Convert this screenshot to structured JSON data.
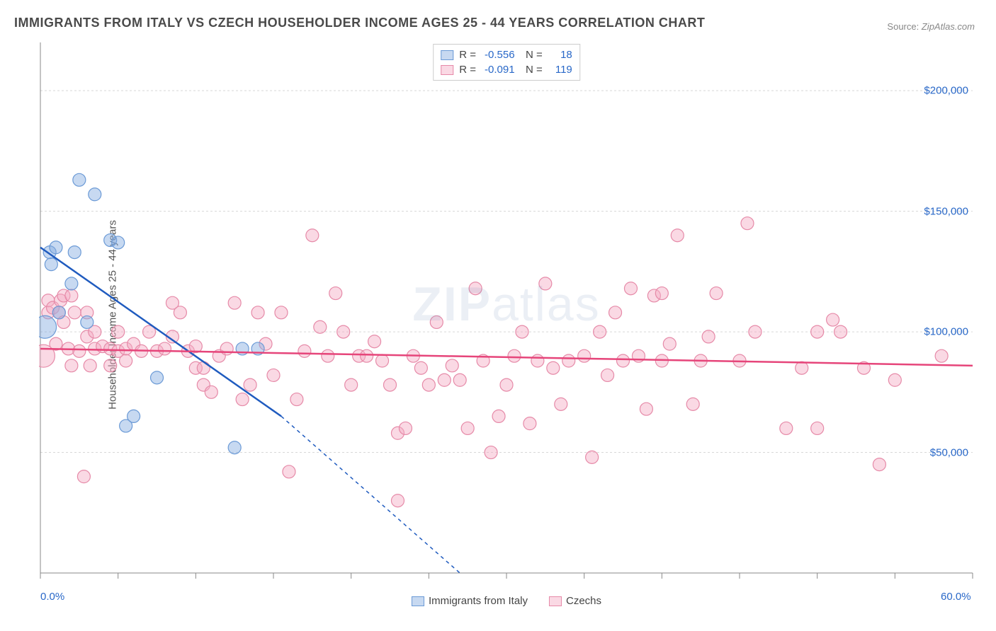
{
  "title": "IMMIGRANTS FROM ITALY VS CZECH HOUSEHOLDER INCOME AGES 25 - 44 YEARS CORRELATION CHART",
  "source_label": "Source:",
  "source_value": "ZipAtlas.com",
  "watermark_bold": "ZIP",
  "watermark_light": "atlas",
  "y_axis_label": "Householder Income Ages 25 - 44 years",
  "chart": {
    "type": "scatter",
    "xlim": [
      0,
      60
    ],
    "ylim": [
      0,
      220000
    ],
    "x_ticks_major": [
      0,
      5,
      10,
      15,
      20,
      25,
      30,
      35,
      40,
      45,
      50,
      55,
      60
    ],
    "x_tick_labels": [
      {
        "x": 0,
        "label": "0.0%"
      },
      {
        "x": 60,
        "label": "60.0%"
      }
    ],
    "y_grid": [
      50000,
      100000,
      150000,
      200000
    ],
    "y_tick_labels": [
      {
        "y": 50000,
        "label": "$50,000"
      },
      {
        "y": 100000,
        "label": "$100,000"
      },
      {
        "y": 150000,
        "label": "$150,000"
      },
      {
        "y": 200000,
        "label": "$200,000"
      }
    ],
    "background_color": "#ffffff",
    "grid_color": "#d8d8d8",
    "axis_color": "#888888",
    "tick_label_color": "#2968c8",
    "marker_radius": 9,
    "series": [
      {
        "id": "italy",
        "label": "Immigrants from Italy",
        "fill_color": "rgba(130, 170, 225, 0.45)",
        "stroke_color": "#6b9ad6",
        "line_color": "#1f5bbf",
        "R": "-0.556",
        "N": "18",
        "trend": {
          "x1": 0,
          "y1": 135000,
          "x2": 15.5,
          "y2": 65000,
          "dash_to_x": 27,
          "dash_to_y": 0
        },
        "points": [
          {
            "x": 0.3,
            "y": 102000,
            "r": 16
          },
          {
            "x": 0.6,
            "y": 133000
          },
          {
            "x": 0.7,
            "y": 128000
          },
          {
            "x": 1.0,
            "y": 135000
          },
          {
            "x": 1.2,
            "y": 108000
          },
          {
            "x": 2.0,
            "y": 120000
          },
          {
            "x": 2.2,
            "y": 133000
          },
          {
            "x": 2.5,
            "y": 163000
          },
          {
            "x": 3.0,
            "y": 104000
          },
          {
            "x": 3.5,
            "y": 157000
          },
          {
            "x": 4.5,
            "y": 138000
          },
          {
            "x": 5.0,
            "y": 137000
          },
          {
            "x": 5.5,
            "y": 61000
          },
          {
            "x": 6.0,
            "y": 65000
          },
          {
            "x": 7.5,
            "y": 81000
          },
          {
            "x": 12.5,
            "y": 52000
          },
          {
            "x": 13.0,
            "y": 93000
          },
          {
            "x": 14.0,
            "y": 93000
          }
        ]
      },
      {
        "id": "czechs",
        "label": "Czechs",
        "fill_color": "rgba(243, 170, 195, 0.45)",
        "stroke_color": "#e68aa8",
        "line_color": "#e6457a",
        "R": "-0.091",
        "N": "119",
        "trend": {
          "x1": 0,
          "y1": 93000,
          "x2": 60,
          "y2": 86000
        },
        "points": [
          {
            "x": 0.2,
            "y": 90000,
            "r": 16
          },
          {
            "x": 0.5,
            "y": 108000
          },
          {
            "x": 0.5,
            "y": 113000
          },
          {
            "x": 0.8,
            "y": 110000
          },
          {
            "x": 1.0,
            "y": 95000
          },
          {
            "x": 1.2,
            "y": 108000
          },
          {
            "x": 1.3,
            "y": 113000
          },
          {
            "x": 1.5,
            "y": 104000
          },
          {
            "x": 1.5,
            "y": 115000
          },
          {
            "x": 1.8,
            "y": 93000
          },
          {
            "x": 2.0,
            "y": 115000
          },
          {
            "x": 2.0,
            "y": 86000
          },
          {
            "x": 2.2,
            "y": 108000
          },
          {
            "x": 2.5,
            "y": 92000
          },
          {
            "x": 2.8,
            "y": 40000
          },
          {
            "x": 3.0,
            "y": 98000
          },
          {
            "x": 3.0,
            "y": 108000
          },
          {
            "x": 3.2,
            "y": 86000
          },
          {
            "x": 3.5,
            "y": 93000
          },
          {
            "x": 3.5,
            "y": 100000
          },
          {
            "x": 4.0,
            "y": 94000
          },
          {
            "x": 4.5,
            "y": 86000
          },
          {
            "x": 4.5,
            "y": 93000
          },
          {
            "x": 5.0,
            "y": 100000
          },
          {
            "x": 5.0,
            "y": 92000
          },
          {
            "x": 5.5,
            "y": 93000
          },
          {
            "x": 5.5,
            "y": 88000
          },
          {
            "x": 6.0,
            "y": 95000
          },
          {
            "x": 6.5,
            "y": 92000
          },
          {
            "x": 7.0,
            "y": 100000
          },
          {
            "x": 7.5,
            "y": 92000
          },
          {
            "x": 8.0,
            "y": 93000
          },
          {
            "x": 8.5,
            "y": 112000
          },
          {
            "x": 8.5,
            "y": 98000
          },
          {
            "x": 9.0,
            "y": 108000
          },
          {
            "x": 9.5,
            "y": 92000
          },
          {
            "x": 10.0,
            "y": 85000
          },
          {
            "x": 10.0,
            "y": 94000
          },
          {
            "x": 10.5,
            "y": 78000
          },
          {
            "x": 10.5,
            "y": 85000
          },
          {
            "x": 11.0,
            "y": 75000
          },
          {
            "x": 11.5,
            "y": 90000
          },
          {
            "x": 12.0,
            "y": 93000
          },
          {
            "x": 12.5,
            "y": 112000
          },
          {
            "x": 13.0,
            "y": 72000
          },
          {
            "x": 13.5,
            "y": 78000
          },
          {
            "x": 14.0,
            "y": 108000
          },
          {
            "x": 14.5,
            "y": 95000
          },
          {
            "x": 15.0,
            "y": 82000
          },
          {
            "x": 15.5,
            "y": 108000
          },
          {
            "x": 16.0,
            "y": 42000
          },
          {
            "x": 16.5,
            "y": 72000
          },
          {
            "x": 17.0,
            "y": 92000
          },
          {
            "x": 17.5,
            "y": 140000
          },
          {
            "x": 18.0,
            "y": 102000
          },
          {
            "x": 18.5,
            "y": 90000
          },
          {
            "x": 19.0,
            "y": 116000
          },
          {
            "x": 19.5,
            "y": 100000
          },
          {
            "x": 20.0,
            "y": 78000
          },
          {
            "x": 20.5,
            "y": 90000
          },
          {
            "x": 21.0,
            "y": 90000
          },
          {
            "x": 21.5,
            "y": 96000
          },
          {
            "x": 22.0,
            "y": 88000
          },
          {
            "x": 22.5,
            "y": 78000
          },
          {
            "x": 23.0,
            "y": 30000
          },
          {
            "x": 23.0,
            "y": 58000
          },
          {
            "x": 23.5,
            "y": 60000
          },
          {
            "x": 24.0,
            "y": 90000
          },
          {
            "x": 24.5,
            "y": 85000
          },
          {
            "x": 25.0,
            "y": 78000
          },
          {
            "x": 25.5,
            "y": 104000
          },
          {
            "x": 26.0,
            "y": 80000
          },
          {
            "x": 26.5,
            "y": 86000
          },
          {
            "x": 27.0,
            "y": 80000
          },
          {
            "x": 27.5,
            "y": 60000
          },
          {
            "x": 28.0,
            "y": 118000
          },
          {
            "x": 28.5,
            "y": 88000
          },
          {
            "x": 29.0,
            "y": 50000
          },
          {
            "x": 29.5,
            "y": 65000
          },
          {
            "x": 30.0,
            "y": 78000
          },
          {
            "x": 30.5,
            "y": 90000
          },
          {
            "x": 31.0,
            "y": 100000
          },
          {
            "x": 31.5,
            "y": 62000
          },
          {
            "x": 32.0,
            "y": 88000
          },
          {
            "x": 32.5,
            "y": 120000
          },
          {
            "x": 33.0,
            "y": 85000
          },
          {
            "x": 33.5,
            "y": 70000
          },
          {
            "x": 34.0,
            "y": 88000
          },
          {
            "x": 35.0,
            "y": 90000
          },
          {
            "x": 35.5,
            "y": 48000
          },
          {
            "x": 36.0,
            "y": 100000
          },
          {
            "x": 36.5,
            "y": 82000
          },
          {
            "x": 37.0,
            "y": 108000
          },
          {
            "x": 37.5,
            "y": 88000
          },
          {
            "x": 38.0,
            "y": 118000
          },
          {
            "x": 38.5,
            "y": 90000
          },
          {
            "x": 39.0,
            "y": 68000
          },
          {
            "x": 39.5,
            "y": 115000
          },
          {
            "x": 40.0,
            "y": 88000
          },
          {
            "x": 40.0,
            "y": 116000
          },
          {
            "x": 40.5,
            "y": 95000
          },
          {
            "x": 41.0,
            "y": 140000
          },
          {
            "x": 42.0,
            "y": 70000
          },
          {
            "x": 42.5,
            "y": 88000
          },
          {
            "x": 43.0,
            "y": 98000
          },
          {
            "x": 43.5,
            "y": 116000
          },
          {
            "x": 45.0,
            "y": 88000
          },
          {
            "x": 45.5,
            "y": 145000
          },
          {
            "x": 46.0,
            "y": 100000
          },
          {
            "x": 48.0,
            "y": 60000
          },
          {
            "x": 49.0,
            "y": 85000
          },
          {
            "x": 50.0,
            "y": 100000
          },
          {
            "x": 50.0,
            "y": 60000
          },
          {
            "x": 51.0,
            "y": 105000
          },
          {
            "x": 51.5,
            "y": 100000
          },
          {
            "x": 53.0,
            "y": 85000
          },
          {
            "x": 54.0,
            "y": 45000
          },
          {
            "x": 55.0,
            "y": 80000
          },
          {
            "x": 58.0,
            "y": 90000
          }
        ]
      }
    ]
  },
  "legend_top": {
    "r_label": "R =",
    "n_label": "N ="
  },
  "legend_bottom": {
    "items": [
      {
        "series": "italy"
      },
      {
        "series": "czechs"
      }
    ]
  }
}
